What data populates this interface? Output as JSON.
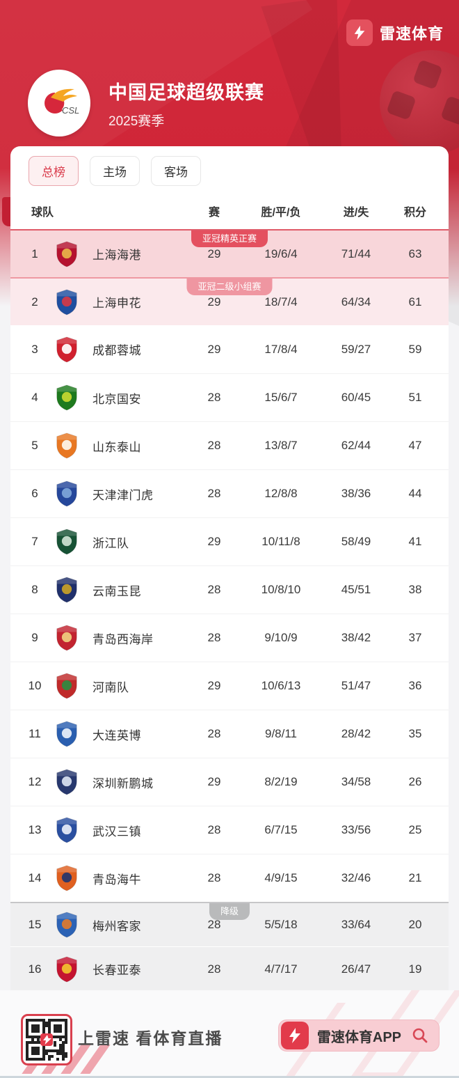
{
  "brand": {
    "name": "雷速体育"
  },
  "league": {
    "title": "中国足球超级联赛",
    "season": "2025赛季",
    "logo_text": "CSL"
  },
  "tabs": [
    {
      "label": "总榜",
      "active": true
    },
    {
      "label": "主场",
      "active": false
    },
    {
      "label": "客场",
      "active": false
    }
  ],
  "colors": {
    "header_red": "#CF2638",
    "accent_red": "#D93A4A",
    "row1_bg": "#F8D6DA",
    "row1_border": "#E05A68",
    "badge1": "#E4505F",
    "row2_bg": "#FBE9EC",
    "row2_border": "#EE98A2",
    "badge2": "#EF96A1",
    "releg_bg": "#EFEFF0",
    "releg_border": "#C6C6C8",
    "badge_releg": "#B9BABB"
  },
  "table": {
    "columns": [
      "球队",
      "赛",
      "胜/平/负",
      "进/失",
      "积分"
    ],
    "rows": [
      {
        "rank": 1,
        "team": "上海海港",
        "played": "29",
        "wdl": "19/6/4",
        "goals": "71/44",
        "points": "63",
        "badge": {
          "label": "亚冠精英正赛",
          "color": "#E4505F",
          "name": "acl-elite-badge"
        },
        "highlight": {
          "bg": "#F8D6DA",
          "border": "#E05A68"
        },
        "logo_colors": [
          "#B5122F",
          "#E8B54A"
        ]
      },
      {
        "rank": 2,
        "team": "上海申花",
        "played": "29",
        "wdl": "18/7/4",
        "goals": "64/34",
        "points": "61",
        "badge": {
          "label": "亚冠二级小组赛",
          "color": "#EF96A1",
          "name": "acl-two-badge"
        },
        "highlight": {
          "bg": "#FBE9EC",
          "border": "#EE98A2"
        },
        "logo_colors": [
          "#1F4FA0",
          "#D63A45"
        ]
      },
      {
        "rank": 3,
        "team": "成都蓉城",
        "played": "29",
        "wdl": "17/8/4",
        "goals": "59/27",
        "points": "59",
        "logo_colors": [
          "#D0202E",
          "#FFFFFF"
        ]
      },
      {
        "rank": 4,
        "team": "北京国安",
        "played": "28",
        "wdl": "15/6/7",
        "goals": "60/45",
        "points": "51",
        "logo_colors": [
          "#1E7A1E",
          "#C8D832"
        ]
      },
      {
        "rank": 5,
        "team": "山东泰山",
        "played": "28",
        "wdl": "13/8/7",
        "goals": "62/44",
        "points": "47",
        "logo_colors": [
          "#E87722",
          "#FDF6EC"
        ]
      },
      {
        "rank": 6,
        "team": "天津津门虎",
        "played": "28",
        "wdl": "12/8/8",
        "goals": "38/36",
        "points": "44",
        "logo_colors": [
          "#25479B",
          "#7EA6D9"
        ]
      },
      {
        "rank": 7,
        "team": "浙江队",
        "played": "29",
        "wdl": "10/11/8",
        "goals": "58/49",
        "points": "41",
        "logo_colors": [
          "#175235",
          "#CFE3D4"
        ]
      },
      {
        "rank": 8,
        "team": "云南玉昆",
        "played": "28",
        "wdl": "10/8/10",
        "goals": "45/51",
        "points": "38",
        "logo_colors": [
          "#20306B",
          "#C9A227"
        ]
      },
      {
        "rank": 9,
        "team": "青岛西海岸",
        "played": "28",
        "wdl": "9/10/9",
        "goals": "38/42",
        "points": "37",
        "logo_colors": [
          "#C22430",
          "#F0D080"
        ]
      },
      {
        "rank": 10,
        "team": "河南队",
        "played": "29",
        "wdl": "10/6/13",
        "goals": "51/47",
        "points": "36",
        "logo_colors": [
          "#C02A2A",
          "#2E8B40"
        ]
      },
      {
        "rank": 11,
        "team": "大连英博",
        "played": "28",
        "wdl": "9/8/11",
        "goals": "28/42",
        "points": "35",
        "logo_colors": [
          "#2A5FB0",
          "#EAF1FA"
        ]
      },
      {
        "rank": 12,
        "team": "深圳新鹏城",
        "played": "29",
        "wdl": "8/2/19",
        "goals": "34/58",
        "points": "26",
        "logo_colors": [
          "#27386E",
          "#D9E2F0"
        ]
      },
      {
        "rank": 13,
        "team": "武汉三镇",
        "played": "28",
        "wdl": "6/7/15",
        "goals": "33/56",
        "points": "25",
        "logo_colors": [
          "#2A4FA0",
          "#E8EDF8"
        ]
      },
      {
        "rank": 14,
        "team": "青岛海牛",
        "played": "28",
        "wdl": "4/9/15",
        "goals": "32/46",
        "points": "21",
        "logo_colors": [
          "#E06020",
          "#24356E"
        ]
      },
      {
        "rank": 15,
        "team": "梅州客家",
        "played": "28",
        "wdl": "5/5/18",
        "goals": "33/64",
        "points": "20",
        "badge": {
          "label": "降级",
          "color": "#B9BABB",
          "name": "relegation-badge"
        },
        "highlight": {
          "bg": "#EFEFF0",
          "border": "#C6C6C8"
        },
        "short": true,
        "logo_colors": [
          "#2B62B5",
          "#E07A2E"
        ]
      },
      {
        "rank": 16,
        "team": "长春亚泰",
        "played": "28",
        "wdl": "4/7/17",
        "goals": "26/47",
        "points": "19",
        "highlight": {
          "bg": "#EFEFF0",
          "border": "#FFFFFF"
        },
        "short": true,
        "logo_colors": [
          "#C41430",
          "#F2C230"
        ]
      }
    ]
  },
  "footer": {
    "slogan": "上雷速 看体育直播",
    "app_label": "雷速体育APP"
  }
}
